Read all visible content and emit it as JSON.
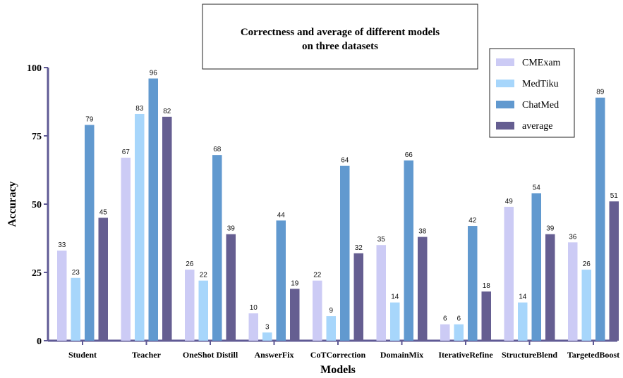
{
  "chart_data": {
    "type": "bar",
    "title_lines": [
      "Correctness and average of different models",
      "on three datasets"
    ],
    "xlabel": "Models",
    "ylabel": "Accuracy",
    "ylim": [
      0,
      100
    ],
    "yticks": [
      0,
      25,
      50,
      75,
      100
    ],
    "legend_position": "top-right",
    "categories": [
      "Student",
      "Teacher",
      "OneShot Distill",
      "AnswerFix",
      "CoTCorrection",
      "DomainMix",
      "IterativeRefine",
      "StructureBlend",
      "TargetedBoost"
    ],
    "series": [
      {
        "name": "CMExam",
        "color": "#cccbf5",
        "values": [
          33,
          67,
          26,
          10,
          22,
          35,
          6,
          49,
          36
        ]
      },
      {
        "name": "MedTiku",
        "color": "#a7d6fb",
        "values": [
          23,
          83,
          22,
          3,
          9,
          14,
          6,
          14,
          26
        ]
      },
      {
        "name": "ChatMed",
        "color": "#6199cf",
        "values": [
          79,
          96,
          68,
          44,
          64,
          66,
          42,
          54,
          89
        ]
      },
      {
        "name": "average",
        "color": "#655e91",
        "values": [
          45,
          82,
          39,
          19,
          32,
          38,
          18,
          39,
          51
        ]
      }
    ],
    "axis_color": "#5f5a95"
  }
}
